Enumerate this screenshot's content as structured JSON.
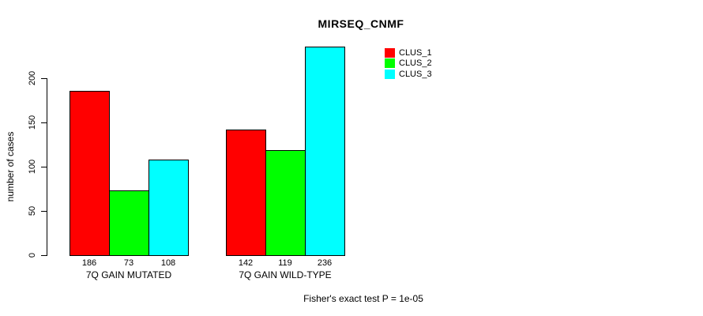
{
  "chart_data": {
    "type": "bar",
    "title": "MIRSEQ_CNMF",
    "xlabel": "",
    "ylabel": "number of cases",
    "footnote": "Fisher's exact test P = 1e-05",
    "categories": [
      "7Q GAIN MUTATED",
      "7Q GAIN WILD-TYPE"
    ],
    "series": [
      {
        "name": "CLUS_1",
        "color": "#ff0000",
        "values": [
          186,
          142
        ]
      },
      {
        "name": "CLUS_2",
        "color": "#00ff00",
        "values": [
          73,
          119
        ]
      },
      {
        "name": "CLUS_3",
        "color": "#00ffff",
        "values": [
          108,
          236
        ]
      }
    ],
    "value_labels": [
      [
        "186",
        "73",
        "108"
      ],
      [
        "142",
        "119",
        "236"
      ]
    ],
    "yticks": [
      0,
      50,
      100,
      150,
      200
    ],
    "ylim": [
      0,
      240
    ],
    "grid": false,
    "legend_position": "top-right",
    "bar_border_color": "#000000",
    "background_color": "#ffffff"
  }
}
